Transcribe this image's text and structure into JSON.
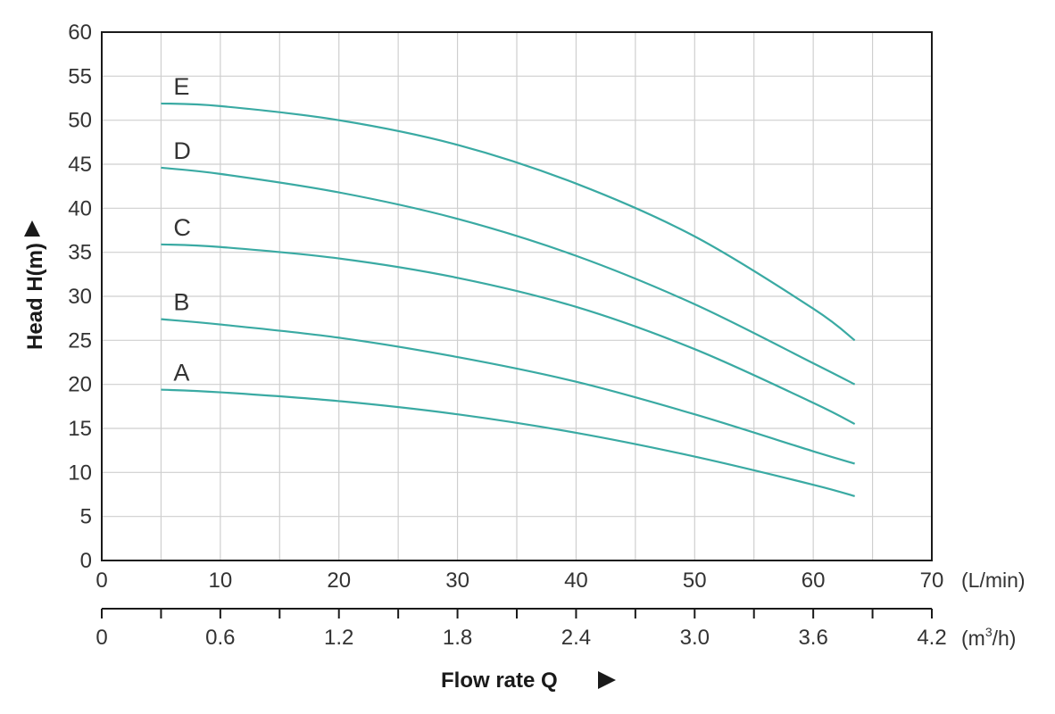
{
  "chart_data": {
    "type": "line",
    "ylabel": "Head H(m)",
    "xlabel": "Flow rate Q",
    "ylim": [
      0,
      60
    ],
    "xlim": [
      0,
      70
    ],
    "y_ticks": [
      "0",
      "5",
      "10",
      "15",
      "20",
      "25",
      "30",
      "35",
      "40",
      "45",
      "50",
      "55",
      "60"
    ],
    "x_ticks_lpm": [
      "0",
      "10",
      "20",
      "30",
      "40",
      "50",
      "60",
      "70"
    ],
    "x_ticks_m3h": [
      "0",
      "0.6",
      "1.2",
      "1.8",
      "2.4",
      "3.0",
      "3.6",
      "4.2"
    ],
    "x_unit_lpm": "(L/min)",
    "x_unit_m3h": "(m3/h)",
    "grid": true,
    "series_color": "#3aaaa3",
    "series": [
      {
        "name": "A",
        "x": [
          5,
          10,
          20,
          30,
          40,
          50,
          60,
          63.5
        ],
        "y": [
          19.4,
          19.1,
          18.1,
          16.6,
          14.5,
          11.8,
          8.6,
          7.3
        ]
      },
      {
        "name": "B",
        "x": [
          5,
          10,
          20,
          30,
          40,
          50,
          60,
          63.5
        ],
        "y": [
          27.4,
          26.8,
          25.3,
          23.1,
          20.3,
          16.6,
          12.4,
          11.0
        ]
      },
      {
        "name": "C",
        "x": [
          5,
          10,
          20,
          30,
          40,
          50,
          60,
          63.5
        ],
        "y": [
          35.9,
          35.6,
          34.3,
          32.1,
          28.8,
          24.0,
          17.9,
          15.5
        ]
      },
      {
        "name": "D",
        "x": [
          5,
          10,
          20,
          30,
          40,
          50,
          60,
          63.5
        ],
        "y": [
          44.6,
          43.9,
          41.8,
          38.8,
          34.6,
          29.1,
          22.4,
          20.0
        ]
      },
      {
        "name": "E",
        "x": [
          5,
          10,
          20,
          30,
          40,
          50,
          60,
          63.5
        ],
        "y": [
          51.9,
          51.6,
          50.0,
          47.2,
          42.8,
          36.8,
          28.6,
          25.0
        ]
      }
    ]
  }
}
